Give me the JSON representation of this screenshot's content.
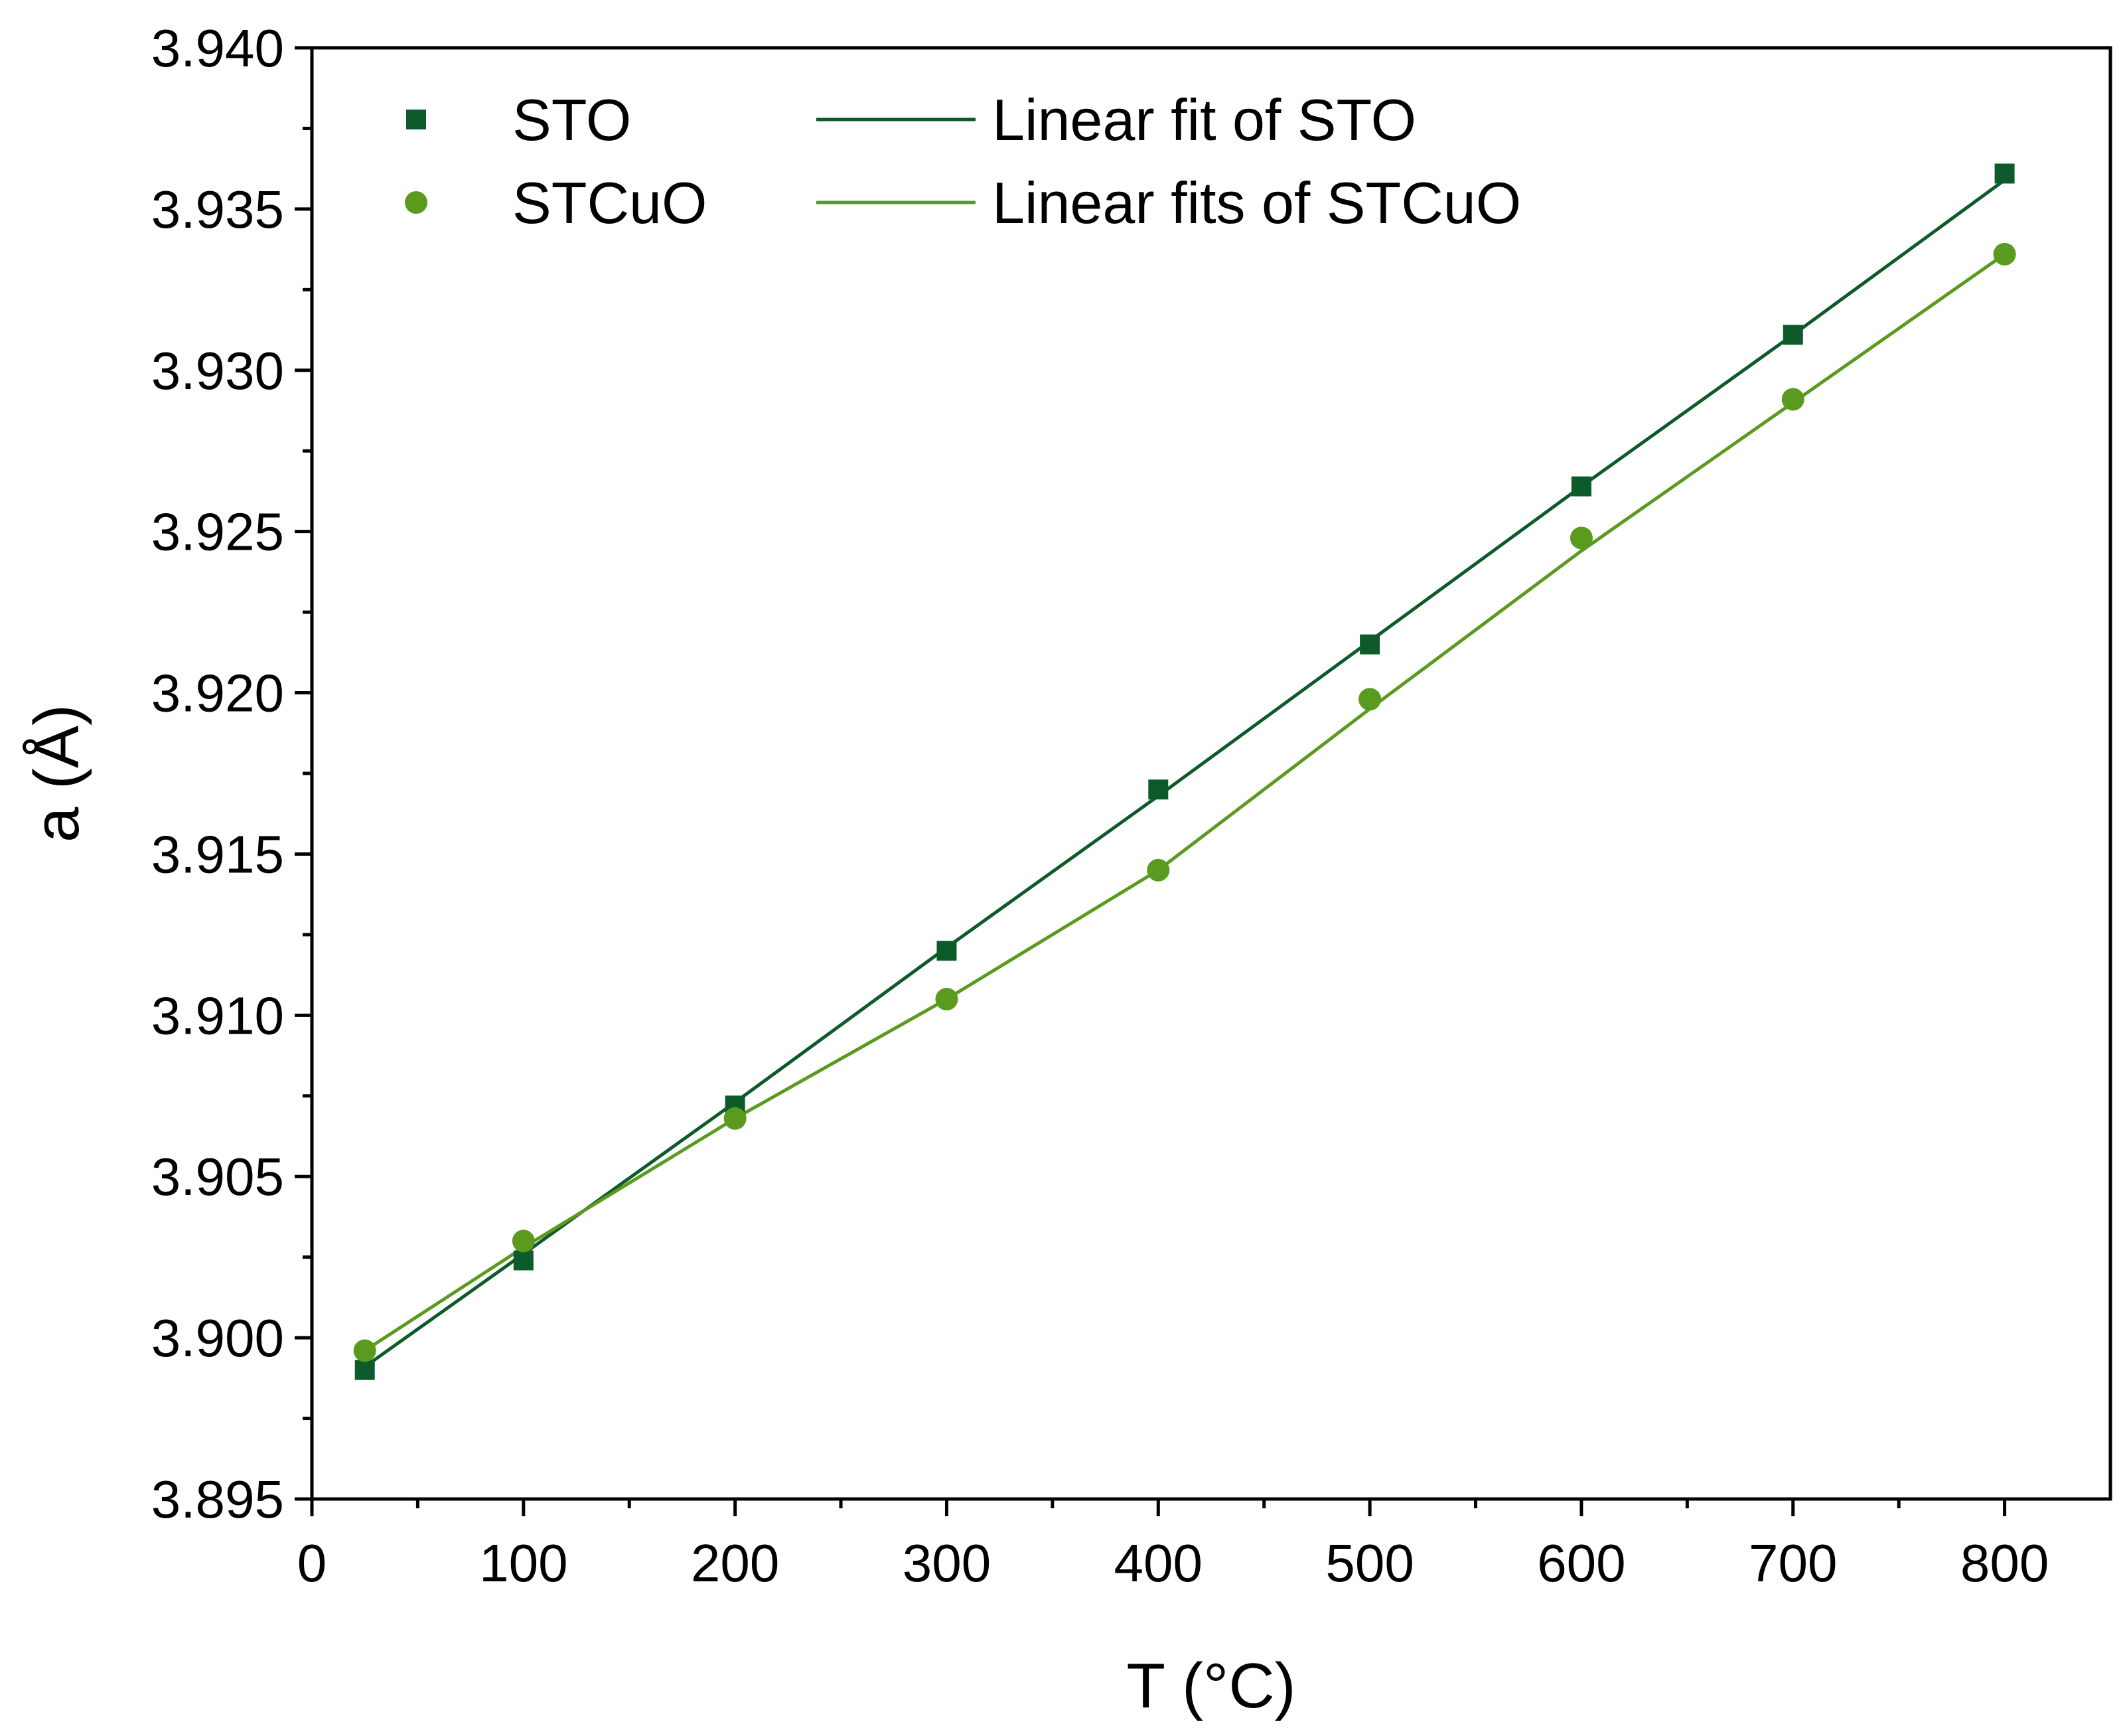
{
  "chart_data": {
    "type": "scatter",
    "title": "",
    "xlabel": "T (°C)",
    "ylabel": "a (Å)",
    "xlim": [
      0,
      850
    ],
    "ylim": [
      3.895,
      3.94
    ],
    "xticks": [
      0,
      100,
      200,
      300,
      400,
      500,
      600,
      700,
      800
    ],
    "xtick_labels": [
      "0",
      "100",
      "200",
      "300",
      "400",
      "500",
      "600",
      "700",
      "800"
    ],
    "yticks": [
      3.895,
      3.9,
      3.905,
      3.91,
      3.915,
      3.92,
      3.925,
      3.93,
      3.935,
      3.94
    ],
    "ytick_labels": [
      "3.895",
      "3.900",
      "3.905",
      "3.910",
      "3.915",
      "3.920",
      "3.925",
      "3.930",
      "3.935",
      "3.940"
    ],
    "grid": false,
    "legend_position": "top-left",
    "series": [
      {
        "name": "STO",
        "kind": "scatter",
        "marker": "square",
        "color": "#0d5a2a",
        "x": [
          25,
          100,
          200,
          300,
          400,
          500,
          600,
          700,
          800
        ],
        "y": [
          3.899,
          3.9024,
          3.9072,
          3.912,
          3.917,
          3.9215,
          3.9264,
          3.9311,
          3.9361
        ]
      },
      {
        "name": "STCuO",
        "kind": "scatter",
        "marker": "circle",
        "color": "#5a9a1f",
        "x": [
          25,
          100,
          200,
          300,
          400,
          500,
          600,
          700,
          800
        ],
        "y": [
          3.8996,
          3.903,
          3.9068,
          3.9105,
          3.9145,
          3.9198,
          3.9248,
          3.9291,
          3.9336
        ]
      },
      {
        "name": "Linear fit of STO",
        "kind": "line",
        "color": "#0d5a2a",
        "x": [
          25,
          100,
          200,
          300,
          400,
          500,
          600,
          700,
          800
        ],
        "y": [
          3.8991,
          3.9026,
          3.9073,
          3.9121,
          3.9168,
          3.9216,
          3.9264,
          3.9311,
          3.9359
        ]
      },
      {
        "name": "Linear fits of STCuO",
        "kind": "line",
        "color": "#5a9a1f",
        "x": [
          25,
          100,
          200,
          300,
          400,
          500,
          600,
          700,
          800
        ],
        "y": [
          3.8996,
          3.9028,
          3.9068,
          3.9105,
          3.9145,
          3.9195,
          3.9244,
          3.929,
          3.9336
        ]
      }
    ]
  }
}
